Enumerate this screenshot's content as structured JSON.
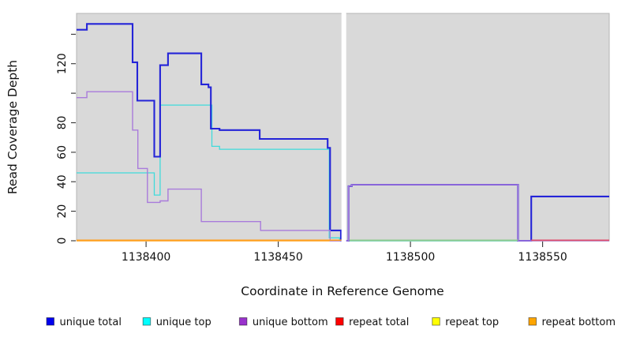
{
  "chart_data": {
    "type": "line",
    "step": true,
    "title": "",
    "xlabel": "Coordinate in Reference Genome",
    "ylabel": "Read Coverage Depth",
    "xlim": [
      1138373.7,
      1138575.2
    ],
    "ylim": [
      0,
      154.1
    ],
    "x_ticks": {
      "values": [
        1138400,
        1138450,
        1138500,
        1138550
      ],
      "labels": [
        "1138400",
        "1138450",
        "1138500",
        "1138550"
      ]
    },
    "y_ticks": {
      "values": [
        0,
        20,
        40,
        60,
        80,
        100,
        120,
        140
      ],
      "labels": [
        "0",
        "20",
        "40",
        "60",
        "80",
        "",
        "120",
        ""
      ]
    },
    "grid": false,
    "panel_bg": "#D9D9D9",
    "panel_border": "#B5B5B5",
    "legend_position": "bottom",
    "gap": {
      "x1": 1138473.9,
      "x2": 1138475.7,
      "color": "#FFFFFF"
    },
    "draw_order": [
      "repeat total",
      "repeat top",
      "repeat bottom",
      "unique top",
      "unique total",
      "unique bottom"
    ],
    "series": [
      {
        "name": "unique total",
        "legend_color": "#0000EE",
        "line_color": "#2424D8",
        "width": 2.1,
        "segments": [
          {
            "steps": [
              [
                1138373.7,
                143
              ],
              [
                1138377.6,
                147
              ],
              [
                1138394.9,
                121
              ],
              [
                1138396.7,
                95
              ],
              [
                1138403.1,
                57
              ],
              [
                1138405.3,
                119
              ],
              [
                1138408.3,
                127
              ],
              [
                1138420.9,
                106
              ],
              [
                1138423.6,
                104
              ],
              [
                1138424.5,
                76
              ],
              [
                1138427.8,
                75
              ],
              [
                1138443.0,
                69
              ],
              [
                1138468.7,
                63
              ],
              [
                1138469.6,
                7
              ],
              [
                1138473.7,
                0
              ]
            ],
            "end": 1138474.2
          },
          {
            "steps": [
              [
                1138475.4,
                0
              ],
              [
                1138476.6,
                37
              ],
              [
                1138477.8,
                38
              ],
              [
                1138540.7,
                0
              ],
              [
                1138545.7,
                30
              ]
            ],
            "end": 1138575.2
          }
        ]
      },
      {
        "name": "unique top",
        "legend_color": "#00FFFF",
        "line_color": "#3FDBDB",
        "width": 1.3,
        "segments": [
          {
            "steps": [
              [
                1138373.7,
                46
              ],
              [
                1138403.1,
                31
              ],
              [
                1138405.3,
                92
              ],
              [
                1138424.9,
                64
              ],
              [
                1138427.8,
                62
              ],
              [
                1138469.3,
                2
              ],
              [
                1138473.2,
                0
              ]
            ],
            "end": 1138474.2
          },
          {
            "steps": [
              [
                1138475.4,
                0
              ],
              [
                1138545.7,
                30
              ]
            ],
            "end": 1138575.2
          }
        ]
      },
      {
        "name": "unique bottom",
        "legend_color": "#9932CC",
        "line_color": "#A97BDB",
        "width": 1.4,
        "segments": [
          {
            "steps": [
              [
                1138373.7,
                97
              ],
              [
                1138377.6,
                101
              ],
              [
                1138394.9,
                75
              ],
              [
                1138396.9,
                49
              ],
              [
                1138400.5,
                26
              ],
              [
                1138405.3,
                27
              ],
              [
                1138408.3,
                35
              ],
              [
                1138420.9,
                13
              ],
              [
                1138443.3,
                7
              ],
              [
                1138469.6,
                0
              ]
            ],
            "end": 1138474.2
          },
          {
            "steps": [
              [
                1138475.4,
                0
              ],
              [
                1138476.6,
                37
              ],
              [
                1138477.8,
                38
              ],
              [
                1138540.7,
                0
              ]
            ],
            "end": 1138575.2
          }
        ]
      },
      {
        "name": "repeat total",
        "legend_color": "#FF0000",
        "line_color": "#E53333",
        "width": 1.2,
        "segments": [
          {
            "steps": [
              [
                1138373.7,
                0
              ]
            ],
            "end": 1138474.2
          },
          {
            "steps": [
              [
                1138475.4,
                0
              ]
            ],
            "end": 1138575.2
          }
        ]
      },
      {
        "name": "repeat top",
        "legend_color": "#FFFF00",
        "line_color": "#FFFF00",
        "width": 1.2,
        "segments": [
          {
            "steps": [
              [
                1138373.7,
                0
              ]
            ],
            "end": 1138474.2
          },
          {
            "steps": [
              [
                1138475.4,
                0
              ]
            ],
            "end": 1138575.2
          }
        ]
      },
      {
        "name": "repeat bottom",
        "legend_color": "#FFA500",
        "line_color": "#FFA020",
        "width": 1.3,
        "segments": [
          {
            "steps": [
              [
                1138373.7,
                0
              ]
            ],
            "end": 1138474.2
          },
          {
            "steps": [
              [
                1138475.4,
                0
              ]
            ],
            "end": 1138575.2
          }
        ]
      }
    ],
    "baseline_segments": [
      {
        "x1": 1138373.7,
        "x2": 1138473.9,
        "color": "#FFA020"
      },
      {
        "x1": 1138476.9,
        "x2": 1138540.7,
        "color": "#8FCB8F"
      },
      {
        "x1": 1138545.7,
        "x2": 1138575.2,
        "color": "#E0506E"
      }
    ]
  }
}
